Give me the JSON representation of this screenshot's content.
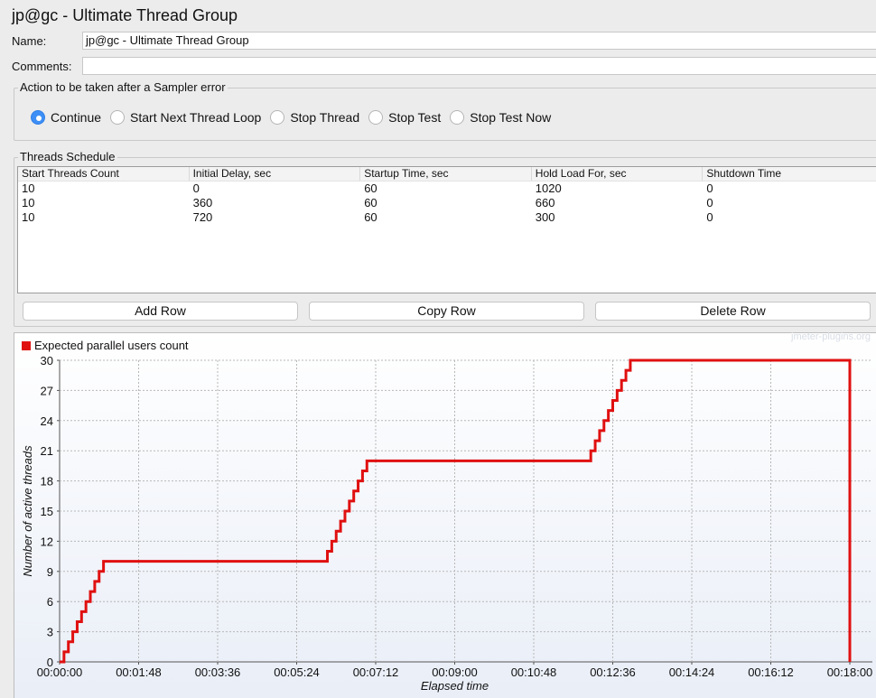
{
  "window": {
    "title": "jp@gc - Ultimate Thread Group"
  },
  "form": {
    "name_label": "Name:",
    "name_value": "jp@gc - Ultimate Thread Group",
    "comments_label": "Comments:",
    "comments_value": ""
  },
  "sampler_error": {
    "title": "Action to be taken after a Sampler error",
    "options": [
      "Continue",
      "Start Next Thread Loop",
      "Stop Thread",
      "Stop Test",
      "Stop Test Now"
    ],
    "selected": "Continue"
  },
  "schedule": {
    "title": "Threads Schedule",
    "columns": [
      "Start Threads Count",
      "Initial Delay, sec",
      "Startup Time, sec",
      "Hold Load For, sec",
      "Shutdown Time"
    ],
    "rows": [
      [
        "10",
        "0",
        "60",
        "1020",
        "0"
      ],
      [
        "10",
        "360",
        "60",
        "660",
        "0"
      ],
      [
        "10",
        "720",
        "60",
        "300",
        "0"
      ]
    ],
    "buttons": {
      "add": "Add Row",
      "copy": "Copy Row",
      "delete": "Delete Row"
    }
  },
  "chart_data": {
    "type": "line",
    "legend": "Expected parallel users count",
    "watermark": "jmeter-plugins.org",
    "xlabel": "Elapsed time",
    "ylabel": "Number of active threads",
    "xlim": [
      0,
      1080
    ],
    "ylim": [
      0,
      30
    ],
    "x_tick_labels": [
      "00:00:00",
      "00:01:48",
      "00:03:36",
      "00:05:24",
      "00:07:12",
      "00:09:00",
      "00:10:48",
      "00:12:36",
      "00:14:24",
      "00:16:12",
      "00:18:00"
    ],
    "y_tick_labels": [
      "0",
      "3",
      "6",
      "9",
      "12",
      "15",
      "18",
      "21",
      "24",
      "27",
      "30"
    ],
    "grid": true,
    "legend_position": "top-left",
    "series": [
      {
        "name": "Expected parallel users count",
        "color": "#e01010",
        "points": [
          [
            0,
            0
          ],
          [
            6,
            1
          ],
          [
            12,
            2
          ],
          [
            18,
            3
          ],
          [
            24,
            4
          ],
          [
            30,
            5
          ],
          [
            36,
            6
          ],
          [
            42,
            7
          ],
          [
            48,
            8
          ],
          [
            54,
            9
          ],
          [
            60,
            10
          ],
          [
            360,
            10
          ],
          [
            366,
            11
          ],
          [
            372,
            12
          ],
          [
            378,
            13
          ],
          [
            384,
            14
          ],
          [
            390,
            15
          ],
          [
            396,
            16
          ],
          [
            402,
            17
          ],
          [
            408,
            18
          ],
          [
            414,
            19
          ],
          [
            420,
            20
          ],
          [
            720,
            20
          ],
          [
            726,
            21
          ],
          [
            732,
            22
          ],
          [
            738,
            23
          ],
          [
            744,
            24
          ],
          [
            750,
            25
          ],
          [
            756,
            26
          ],
          [
            762,
            27
          ],
          [
            768,
            28
          ],
          [
            774,
            29
          ],
          [
            780,
            30
          ],
          [
            1080,
            30
          ],
          [
            1080,
            0
          ]
        ]
      }
    ]
  }
}
